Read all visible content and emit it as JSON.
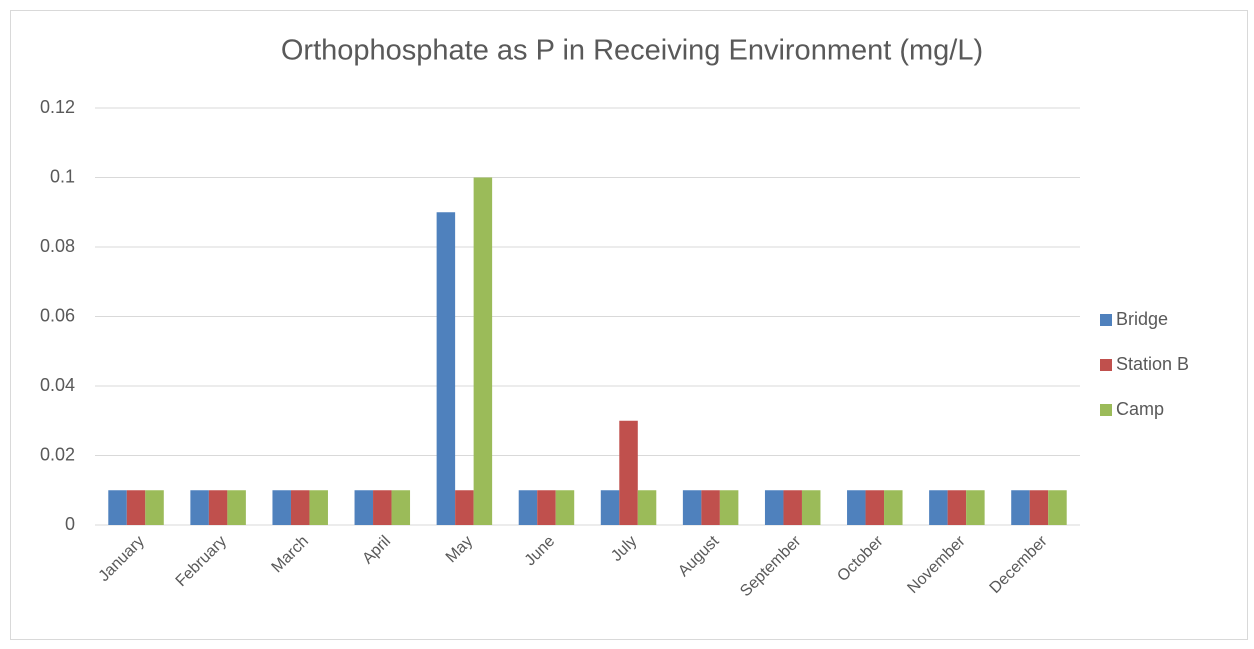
{
  "chart_data": {
    "type": "bar",
    "title": "Orthophosphate as P in Receiving Environment (mg/L)",
    "categories": [
      "January",
      "February",
      "March",
      "April",
      "May",
      "June",
      "July",
      "August",
      "September",
      "October",
      "November",
      "December"
    ],
    "series": [
      {
        "name": "Bridge",
        "color": "#4f81bd",
        "values": [
          0.01,
          0.01,
          0.01,
          0.01,
          0.09,
          0.01,
          0.01,
          0.01,
          0.01,
          0.01,
          0.01,
          0.01
        ]
      },
      {
        "name": "Station B",
        "color": "#c0504d",
        "values": [
          0.01,
          0.01,
          0.01,
          0.01,
          0.01,
          0.01,
          0.03,
          0.01,
          0.01,
          0.01,
          0.01,
          0.01
        ]
      },
      {
        "name": "Camp",
        "color": "#9bbb59",
        "values": [
          0.01,
          0.01,
          0.01,
          0.01,
          0.1,
          0.01,
          0.01,
          0.01,
          0.01,
          0.01,
          0.01,
          0.01
        ]
      }
    ],
    "ylim": [
      0,
      0.12
    ],
    "yticks": [
      0,
      0.02,
      0.04,
      0.06,
      0.08,
      0.1,
      0.12
    ],
    "grid": true,
    "legend": "right"
  }
}
